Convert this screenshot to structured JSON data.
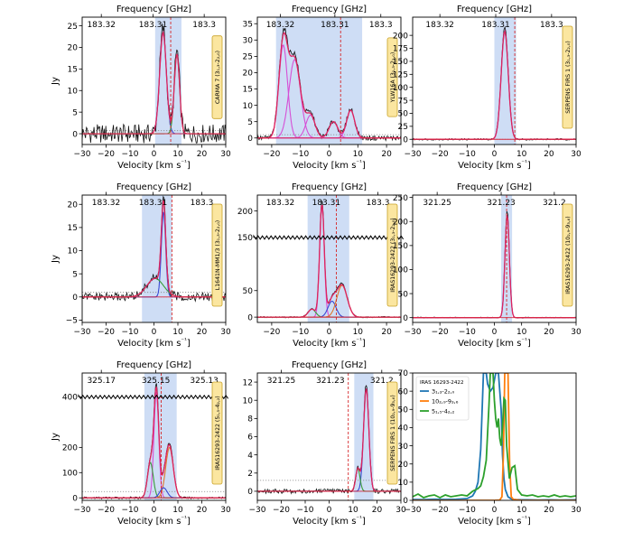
{
  "chart_data": [
    {
      "type": "line",
      "title": "Frequency [GHz]",
      "xlabel": "Velocity [km s⁻¹]",
      "ylabel": "Jy",
      "xlim": [
        -30,
        30
      ],
      "ylim": [
        -2.5,
        27
      ],
      "yticks": [
        0,
        5,
        10,
        15,
        20,
        25
      ],
      "freq_ticks": [
        {
          "v": -22.0,
          "label": "183.32"
        },
        {
          "v": -0.4,
          "label": "183.31"
        },
        {
          "v": 21.0,
          "label": "183.3"
        }
      ],
      "band": [
        0.5,
        11.5
      ],
      "vline": 7.0,
      "noise": 2.2,
      "rms": 0.7,
      "source": "CARMA 7 (3₁,₃-2₂,₀)",
      "components": [
        {
          "name": "blue",
          "center": 3.8,
          "amp": 23.5,
          "sigma": 1.4
        },
        {
          "name": "green",
          "center": 9.6,
          "amp": 18.5,
          "sigma": 1.1
        }
      ]
    },
    {
      "type": "line",
      "title": "Frequency [GHz]",
      "xlabel": "Velocity [km s⁻¹]",
      "ylabel": "",
      "xlim": [
        -25,
        25
      ],
      "ylim": [
        -2,
        37
      ],
      "yticks": [
        0,
        5,
        10,
        15,
        20,
        25,
        30,
        35
      ],
      "freq_ticks": [
        {
          "v": -17.0,
          "label": "183.32"
        },
        {
          "v": 2.0,
          "label": "183.31"
        },
        {
          "v": 18.0,
          "label": "183.3"
        }
      ],
      "band": [
        -18.5,
        11.5
      ],
      "vline": 4.0,
      "noise": 0.8,
      "rms": 1.0,
      "source": "YLW16A (3₁,₃-2₂,₀)",
      "components": [
        {
          "name": "magenta-1",
          "center": -16.0,
          "amp": 28.5,
          "sigma": 1.5
        },
        {
          "name": "magenta-2",
          "center": -12.0,
          "amp": 24.0,
          "sigma": 2.0
        },
        {
          "name": "magenta-3",
          "center": -6.5,
          "amp": 7.0,
          "sigma": 1.6
        },
        {
          "name": "magenta-4",
          "center": 1.5,
          "amp": 5.0,
          "sigma": 1.5
        },
        {
          "name": "magenta-5",
          "center": 7.5,
          "amp": 8.5,
          "sigma": 1.4
        }
      ]
    },
    {
      "type": "line",
      "title": "Frequency [GHz]",
      "xlabel": "Velocity [km s⁻¹]",
      "ylabel": "",
      "xlim": [
        -30,
        30
      ],
      "ylim": [
        -10,
        235
      ],
      "yticks": [
        0,
        25,
        50,
        75,
        100,
        125,
        150,
        175,
        200
      ],
      "freq_ticks": [
        {
          "v": -20.0,
          "label": "183.32"
        },
        {
          "v": 0.5,
          "label": "183.31"
        },
        {
          "v": 21.0,
          "label": "183.3"
        }
      ],
      "band": [
        0.0,
        8.0
      ],
      "vline": 7.5,
      "noise": 1.6,
      "rms": 0.0,
      "source": "SERPENS FIRS 1 (3₁,₃-2₂,₀)",
      "components": [
        {
          "name": "blue",
          "center": 3.8,
          "amp": 208,
          "sigma": 1.3
        }
      ]
    },
    {
      "type": "line",
      "title": "Frequency [GHz]",
      "xlabel": "Velocity [km s⁻¹]",
      "ylabel": "Jy",
      "xlim": [
        -30,
        30
      ],
      "ylim": [
        -5.5,
        22
      ],
      "yticks": [
        -5,
        0,
        5,
        10,
        15,
        20
      ],
      "freq_ticks": [
        {
          "v": -20.0,
          "label": "183.32"
        },
        {
          "v": -0.4,
          "label": "183.31"
        },
        {
          "v": 20.0,
          "label": "183.3"
        }
      ],
      "band": [
        -5.0,
        7.5
      ],
      "vline": 7.5,
      "noise": 0.9,
      "rms": 1.0,
      "source": "L1641N-MM1/3 (3₁,₃-2₂,₀)",
      "components": [
        {
          "name": "blue",
          "center": 4.0,
          "amp": 18.5,
          "sigma": 0.9
        },
        {
          "name": "green",
          "center": 0.5,
          "amp": 4.0,
          "sigma": 3.5
        }
      ]
    },
    {
      "type": "line",
      "title": "Frequency [GHz]",
      "xlabel": "Velocity [km s⁻¹]",
      "ylabel": "",
      "xlim": [
        -25,
        25
      ],
      "ylim": [
        -10,
        230
      ],
      "yticks": [
        0,
        50,
        150,
        200
      ],
      "ybreak": 150,
      "freq_ticks": [
        {
          "v": -17.0,
          "label": "183.32"
        },
        {
          "v": -1.0,
          "label": "183.31"
        },
        {
          "v": 17.0,
          "label": "183.3"
        }
      ],
      "band": [
        -7.5,
        7.0
      ],
      "vline": 2.5,
      "noise": 1.2,
      "rms": 0.0,
      "source": "IRAS16293-2422 (3₁,₃-2₂,₀)",
      "components": [
        {
          "name": "magenta",
          "center": -2.5,
          "amp": 212,
          "sigma": 0.8
        },
        {
          "name": "green",
          "center": -6.0,
          "amp": 15.0,
          "sigma": 1.3
        },
        {
          "name": "blue",
          "center": 1.0,
          "amp": 30.0,
          "sigma": 1.4
        },
        {
          "name": "orange",
          "center": 4.5,
          "amp": 60.0,
          "sigma": 1.8
        }
      ]
    },
    {
      "type": "line",
      "title": "Frequency [GHz]",
      "xlabel": "Velocity [km s⁻¹]",
      "ylabel": "",
      "xlim": [
        -30,
        30
      ],
      "ylim": [
        -10,
        255
      ],
      "yticks": [
        0,
        50,
        100,
        150,
        200,
        250
      ],
      "freq_ticks": [
        {
          "v": -21.0,
          "label": "321.25"
        },
        {
          "v": 2.5,
          "label": "321.23"
        },
        {
          "v": 22.0,
          "label": "321.2"
        }
      ],
      "band": [
        2.5,
        6.5
      ],
      "vline": 4.5,
      "noise": 1.0,
      "rms": 0.0,
      "source": "IRAS16293-2422 (10₂,₉-9₃,₆)",
      "components": [
        {
          "name": "blue",
          "center": 4.7,
          "amp": 215,
          "sigma": 0.8
        }
      ]
    },
    {
      "type": "line",
      "title": "Frequency [GHz]",
      "xlabel": "Velocity [km s⁻¹]",
      "ylabel": "Jy",
      "xlim": [
        -30,
        30
      ],
      "ylim": [
        -10,
        495
      ],
      "yticks": [
        0,
        100,
        200,
        400
      ],
      "ybreak": 400,
      "freq_ticks": [
        {
          "v": -22.0,
          "label": "325.17"
        },
        {
          "v": 0.8,
          "label": "325.15"
        },
        {
          "v": 21.0,
          "label": "325.13"
        }
      ],
      "band": [
        -4.0,
        9.5
      ],
      "vline": 3.0,
      "noise": 4.0,
      "rms": 25.0,
      "source": "IRAS16293-2422 (5₁,₅-4₂,₂)",
      "components": [
        {
          "name": "magenta",
          "center": 1.0,
          "amp": 420,
          "sigma": 1.0
        },
        {
          "name": "green",
          "center": -1.5,
          "amp": 140,
          "sigma": 1.2
        },
        {
          "name": "orange",
          "center": 6.5,
          "amp": 200,
          "sigma": 1.6
        },
        {
          "name": "blue",
          "center": 4.0,
          "amp": 40,
          "sigma": 1.5
        }
      ]
    },
    {
      "type": "line",
      "title": "Frequency [GHz]",
      "xlabel": "Velocity [km s⁻¹]",
      "ylabel": "",
      "xlim": [
        -30,
        30
      ],
      "ylim": [
        -1,
        13
      ],
      "yticks": [
        0,
        2,
        4,
        6,
        8,
        10,
        12
      ],
      "freq_ticks": [
        {
          "v": -20.0,
          "label": "321.25"
        },
        {
          "v": 0.5,
          "label": "321.23"
        },
        {
          "v": 22.0,
          "label": "321.2"
        }
      ],
      "band": [
        10.5,
        18.5
      ],
      "vline": 8.0,
      "noise": 0.25,
      "rms": 1.2,
      "source": "SERPENS FIRS 1 (10₂,₉-9₃,₆)",
      "components": [
        {
          "name": "blue",
          "center": 15.5,
          "amp": 11.3,
          "sigma": 1.1
        },
        {
          "name": "green",
          "center": 12.0,
          "amp": 2.5,
          "sigma": 0.9
        }
      ]
    },
    {
      "type": "line",
      "title": "",
      "xlabel": "Velocity [km s⁻¹]",
      "ylabel": "",
      "xlim": [
        -30,
        30
      ],
      "ylim": [
        0,
        70
      ],
      "yticks": [
        0,
        10,
        20,
        30,
        40,
        50,
        60,
        70
      ],
      "legend_title": "IRAS 16293-2422",
      "legend_position": "top-left",
      "series": [
        {
          "name": "3₁,₃-2₂,₀",
          "color": "#1f77b4",
          "x": [
            -30,
            -26,
            -22,
            -18,
            -14,
            -10,
            -8,
            -7,
            -6,
            -5,
            -4,
            -3.5,
            -3,
            -2.5,
            -1.5,
            -0.5,
            0.5,
            1.5,
            2.5,
            3.0,
            3.5,
            4.0,
            5.0,
            6.0,
            7.0,
            8.0,
            10,
            12,
            16,
            20,
            24,
            30
          ],
          "y": [
            0.5,
            0.4,
            0.6,
            0.5,
            0.6,
            1.0,
            2.5,
            5.0,
            10.0,
            28.0,
            70.0,
            70.0,
            70.0,
            64.0,
            60.0,
            62.0,
            70.0,
            70.0,
            50.0,
            25.0,
            12.0,
            6.0,
            2.0,
            1.0,
            0.5,
            0.4,
            0.3,
            0.3,
            0.2,
            0.3,
            0.2,
            0.3
          ]
        },
        {
          "name": "10₂,₉-9₃,₆",
          "color": "#ff7f0e",
          "x": [
            -30,
            -20,
            -10,
            0,
            2.0,
            2.8,
            3.3,
            3.8,
            4.3,
            5.0,
            5.6,
            6.2,
            7.0,
            10,
            20,
            30
          ],
          "y": [
            0,
            0,
            0,
            0,
            0.2,
            2.0,
            25.0,
            70.0,
            70.0,
            70.0,
            20.0,
            2.0,
            0.5,
            0,
            0,
            0
          ]
        },
        {
          "name": "5₁,₅-4₂,₂",
          "color": "#2ca02c",
          "x": [
            -30,
            -28,
            -26,
            -24,
            -22,
            -20,
            -18,
            -16,
            -14,
            -12,
            -10,
            -8,
            -6,
            -5,
            -4,
            -3,
            -2,
            -1.5,
            -1.0,
            -0.5,
            0.0,
            0.5,
            1.0,
            1.5,
            2.0,
            2.5,
            3.0,
            3.5,
            4.0,
            4.5,
            5.5,
            6.5,
            7.5,
            8.5,
            10,
            12,
            14,
            16,
            18,
            20,
            22,
            24,
            26,
            28,
            30
          ],
          "y": [
            2.0,
            3.5,
            1.5,
            2.5,
            3.0,
            1.5,
            3.0,
            2.0,
            2.5,
            3.0,
            2.5,
            5.0,
            6.5,
            8.0,
            13.0,
            22.0,
            52.0,
            70.0,
            70.0,
            70.0,
            55.0,
            45.0,
            40.0,
            45.0,
            34.0,
            30.0,
            40.0,
            56.0,
            55.0,
            30.0,
            12.0,
            18.0,
            19.0,
            6.0,
            3.0,
            2.5,
            3.0,
            2.0,
            2.5,
            2.0,
            3.0,
            2.0,
            2.5,
            2.0,
            2.5
          ]
        }
      ]
    }
  ]
}
